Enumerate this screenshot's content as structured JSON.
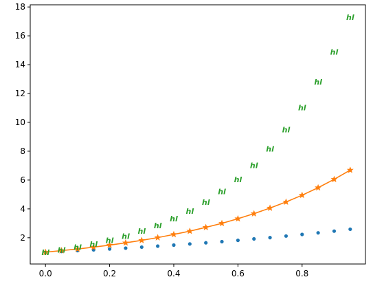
{
  "chart_data": {
    "type": "line",
    "title": "",
    "xlabel": "",
    "ylabel": "",
    "xlim": [
      -0.0475,
      0.9975
    ],
    "ylim": [
      0.18,
      18.15
    ],
    "grid": false,
    "legend": "none",
    "x_ticks": [
      0.0,
      0.2,
      0.4,
      0.6,
      0.8
    ],
    "x_tick_labels": [
      "0.0",
      "0.2",
      "0.4",
      "0.6",
      "0.8"
    ],
    "y_ticks": [
      2,
      4,
      6,
      8,
      10,
      12,
      14,
      16,
      18
    ],
    "y_tick_labels": [
      "2",
      "4",
      "6",
      "8",
      "10",
      "12",
      "14",
      "16",
      "18"
    ],
    "x": [
      0.0,
      0.05,
      0.1,
      0.15,
      0.2,
      0.25,
      0.3,
      0.35,
      0.4,
      0.45,
      0.5,
      0.55,
      0.6,
      0.65,
      0.7,
      0.75,
      0.8,
      0.85,
      0.9,
      0.95
    ],
    "series": [
      {
        "color": "#1f77b4",
        "marker": "dot",
        "line": false,
        "values": [
          1.0,
          1.05,
          1.11,
          1.16,
          1.22,
          1.28,
          1.35,
          1.42,
          1.49,
          1.57,
          1.65,
          1.73,
          1.82,
          1.92,
          2.01,
          2.12,
          2.23,
          2.34,
          2.46,
          2.59
        ]
      },
      {
        "color": "#ff7f0e",
        "marker": "star",
        "line": true,
        "values": [
          1.0,
          1.11,
          1.22,
          1.35,
          1.49,
          1.65,
          1.82,
          2.01,
          2.23,
          2.46,
          2.72,
          3.0,
          3.32,
          3.67,
          4.06,
          4.48,
          4.95,
          5.47,
          6.05,
          6.69
        ]
      },
      {
        "color": "#2ca02c",
        "marker": "hl",
        "line": false,
        "values": [
          1.0,
          1.16,
          1.35,
          1.57,
          1.82,
          2.12,
          2.46,
          2.86,
          3.32,
          3.86,
          4.48,
          5.21,
          6.05,
          7.03,
          8.17,
          9.49,
          11.02,
          12.81,
          14.88,
          17.29
        ]
      }
    ]
  },
  "markers": {
    "hl_text": "hl"
  }
}
